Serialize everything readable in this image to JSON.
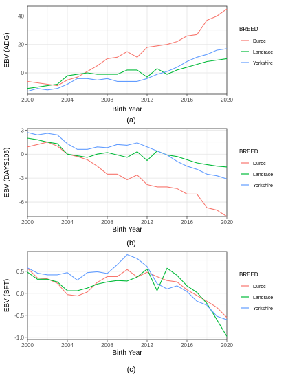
{
  "chart_data": [
    {
      "type": "line",
      "caption": "(a)",
      "xlabel": "Birth Year",
      "ylabel": "EBV (ADG)",
      "xlim": [
        2000,
        2020
      ],
      "ylim": [
        -15,
        47
      ],
      "x_ticks": [
        2000,
        2004,
        2008,
        2012,
        2016,
        2020
      ],
      "x_tick_labels": [
        "2000",
        "2004",
        "2008",
        "2012",
        "2016",
        "2020"
      ],
      "y_ticks": [
        0,
        20,
        40
      ],
      "y_tick_labels": [
        "0",
        "20",
        "40"
      ],
      "grid": true,
      "legend": {
        "title": "BREED",
        "position": "right"
      },
      "x": [
        2000,
        2001,
        2002,
        2003,
        2004,
        2005,
        2006,
        2007,
        2008,
        2009,
        2010,
        2011,
        2012,
        2013,
        2014,
        2015,
        2016,
        2017,
        2018,
        2019,
        2020
      ],
      "series": [
        {
          "name": "Duroc",
          "color": "#F8766D",
          "values": [
            -6,
            -7,
            -8,
            -9,
            -5,
            -3,
            1,
            5,
            10,
            11,
            15,
            11,
            18,
            19,
            20,
            22,
            26,
            27,
            37,
            40,
            45
          ]
        },
        {
          "name": "Landrace",
          "color": "#00BA38",
          "values": [
            -11,
            -10,
            -9,
            -8,
            -2,
            -1,
            0,
            -1,
            -1,
            -1,
            2,
            2,
            -3,
            3,
            -1,
            2,
            4,
            6,
            8,
            9,
            10
          ]
        },
        {
          "name": "Yorkshire",
          "color": "#619CFF",
          "values": [
            -13,
            -11,
            -12,
            -11,
            -8,
            -4,
            -4,
            -5,
            -4,
            -6,
            -6,
            -6,
            -4,
            -1,
            1,
            4,
            8,
            11,
            13,
            16,
            17
          ]
        }
      ]
    },
    {
      "type": "line",
      "caption": "(b)",
      "xlabel": "Birth Year",
      "ylabel": "EBV (DAYS105)",
      "xlim": [
        2000,
        2020
      ],
      "ylim": [
        -7.8,
        3.2
      ],
      "x_ticks": [
        2000,
        2004,
        2008,
        2012,
        2016,
        2020
      ],
      "x_tick_labels": [
        "2000",
        "2004",
        "2008",
        "2012",
        "2016",
        "2020"
      ],
      "y_ticks": [
        -6,
        -3,
        0,
        3
      ],
      "y_tick_labels": [
        "-6",
        "-3",
        "0",
        "3"
      ],
      "grid": true,
      "legend": {
        "title": "BREED",
        "position": "right"
      },
      "x": [
        2000,
        2001,
        2002,
        2003,
        2004,
        2005,
        2006,
        2007,
        2008,
        2009,
        2010,
        2011,
        2012,
        2013,
        2014,
        2015,
        2016,
        2017,
        2018,
        2019,
        2020
      ],
      "series": [
        {
          "name": "Duroc",
          "color": "#F8766D",
          "values": [
            0.9,
            1.2,
            1.5,
            1.0,
            0.0,
            -0.3,
            -0.7,
            -1.5,
            -2.5,
            -2.5,
            -3.2,
            -2.6,
            -3.8,
            -4.1,
            -4.1,
            -4.3,
            -5.0,
            -5.0,
            -6.7,
            -7.0,
            -7.8
          ]
        },
        {
          "name": "Landrace",
          "color": "#00BA38",
          "values": [
            2.0,
            1.8,
            1.5,
            1.3,
            0.0,
            -0.2,
            -0.4,
            0.0,
            0.2,
            -0.1,
            -0.4,
            0.3,
            -0.8,
            0.4,
            -0.1,
            -0.3,
            -0.7,
            -1.1,
            -1.3,
            -1.5,
            -1.6
          ]
        },
        {
          "name": "Yorkshire",
          "color": "#619CFF",
          "values": [
            2.7,
            2.4,
            2.6,
            2.4,
            1.3,
            0.6,
            0.6,
            0.9,
            0.8,
            1.2,
            1.1,
            1.4,
            0.9,
            0.4,
            -0.1,
            -0.9,
            -1.5,
            -1.9,
            -2.5,
            -2.7,
            -3.1
          ]
        }
      ]
    },
    {
      "type": "line",
      "caption": "(c)",
      "xlabel": "Birth Year",
      "ylabel": "EBV (BFT)",
      "xlim": [
        2000,
        2020
      ],
      "ylim": [
        -1.05,
        0.95
      ],
      "x_ticks": [
        2000,
        2004,
        2008,
        2012,
        2016,
        2020
      ],
      "x_tick_labels": [
        "2000",
        "2004",
        "2008",
        "2012",
        "2016",
        "2020"
      ],
      "y_ticks": [
        -1.0,
        -0.5,
        0.0,
        0.5
      ],
      "y_tick_labels": [
        "-1.0",
        "-0.5",
        "0.0",
        "0.5"
      ],
      "grid": true,
      "legend": {
        "title": "BREED",
        "position": "right"
      },
      "x": [
        2000,
        2001,
        2002,
        2003,
        2004,
        2005,
        2006,
        2007,
        2008,
        2009,
        2010,
        2011,
        2012,
        2013,
        2014,
        2015,
        2016,
        2017,
        2018,
        2019,
        2020
      ],
      "series": [
        {
          "name": "Duroc",
          "color": "#F8766D",
          "values": [
            0.57,
            0.35,
            0.33,
            0.23,
            -0.03,
            -0.06,
            0.03,
            0.25,
            0.38,
            0.38,
            0.54,
            0.37,
            0.48,
            0.38,
            0.29,
            0.26,
            0.08,
            -0.05,
            -0.18,
            -0.32,
            -0.55
          ]
        },
        {
          "name": "Landrace",
          "color": "#00BA38",
          "values": [
            0.48,
            0.32,
            0.32,
            0.26,
            0.06,
            0.06,
            0.12,
            0.21,
            0.26,
            0.29,
            0.28,
            0.37,
            0.55,
            0.06,
            0.57,
            0.41,
            0.17,
            0.02,
            -0.23,
            -0.6,
            -0.98
          ]
        },
        {
          "name": "Yorkshire",
          "color": "#619CFF",
          "values": [
            0.58,
            0.46,
            0.42,
            0.42,
            0.47,
            0.3,
            0.47,
            0.49,
            0.45,
            0.65,
            0.88,
            0.79,
            0.61,
            0.22,
            0.1,
            0.17,
            0.04,
            -0.18,
            -0.27,
            -0.52,
            -0.6
          ]
        }
      ]
    }
  ]
}
